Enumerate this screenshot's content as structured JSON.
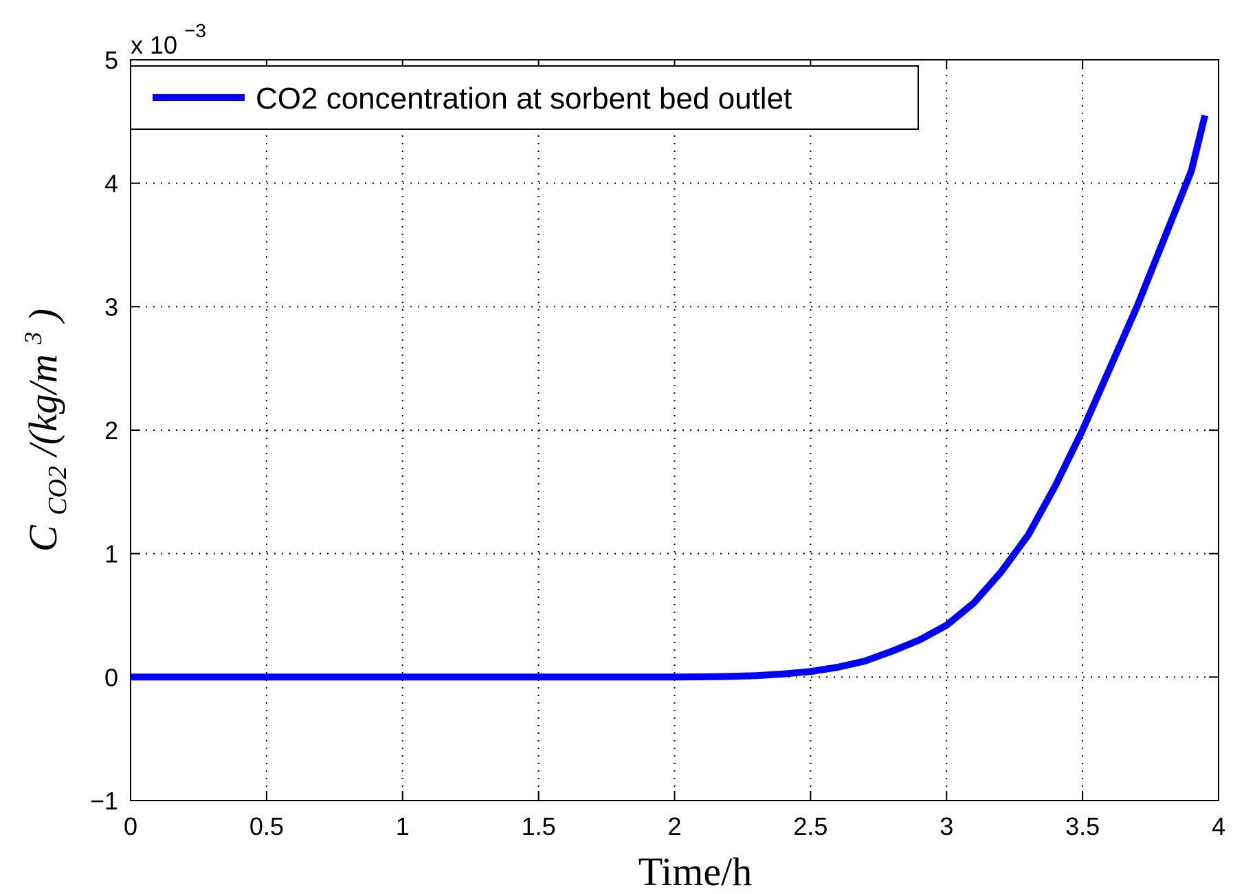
{
  "chart_data": {
    "type": "line",
    "xlabel": "Time/h",
    "ylabel": {
      "symbol": "C",
      "subscript": "CO2",
      "rest": "/(kg/m",
      "superscript": "3",
      "close": ")"
    },
    "y_multiplier": {
      "prefix": "x 10",
      "exponent": "−3"
    },
    "xlim": [
      0,
      4
    ],
    "ylim": [
      -1,
      5
    ],
    "xticks": [
      {
        "value": 0,
        "label": "0"
      },
      {
        "value": 0.5,
        "label": "0.5"
      },
      {
        "value": 1,
        "label": "1"
      },
      {
        "value": 1.5,
        "label": "1.5"
      },
      {
        "value": 2,
        "label": "2"
      },
      {
        "value": 2.5,
        "label": "2.5"
      },
      {
        "value": 3,
        "label": "3"
      },
      {
        "value": 3.5,
        "label": "3.5"
      },
      {
        "value": 4,
        "label": "4"
      }
    ],
    "yticks": [
      {
        "value": -1,
        "label": "−1"
      },
      {
        "value": 0,
        "label": "0"
      },
      {
        "value": 1,
        "label": "1"
      },
      {
        "value": 2,
        "label": "2"
      },
      {
        "value": 3,
        "label": "3"
      },
      {
        "value": 4,
        "label": "4"
      },
      {
        "value": 5,
        "label": "5"
      }
    ],
    "grid": true,
    "legend_position": "top-left",
    "series": [
      {
        "name": "CO2 concentration at sorbent bed outlet",
        "color": "#0000ff",
        "x": [
          0,
          0.5,
          1,
          1.5,
          2,
          2.1,
          2.2,
          2.3,
          2.4,
          2.5,
          2.6,
          2.7,
          2.8,
          2.9,
          3.0,
          3.1,
          3.2,
          3.3,
          3.4,
          3.5,
          3.6,
          3.7,
          3.8,
          3.9,
          3.95
        ],
        "y": [
          0,
          0,
          0,
          0,
          0,
          0.002,
          0.005,
          0.012,
          0.025,
          0.045,
          0.08,
          0.13,
          0.21,
          0.3,
          0.42,
          0.6,
          0.85,
          1.15,
          1.55,
          2.0,
          2.5,
          3.0,
          3.55,
          4.1,
          4.55
        ]
      }
    ]
  }
}
